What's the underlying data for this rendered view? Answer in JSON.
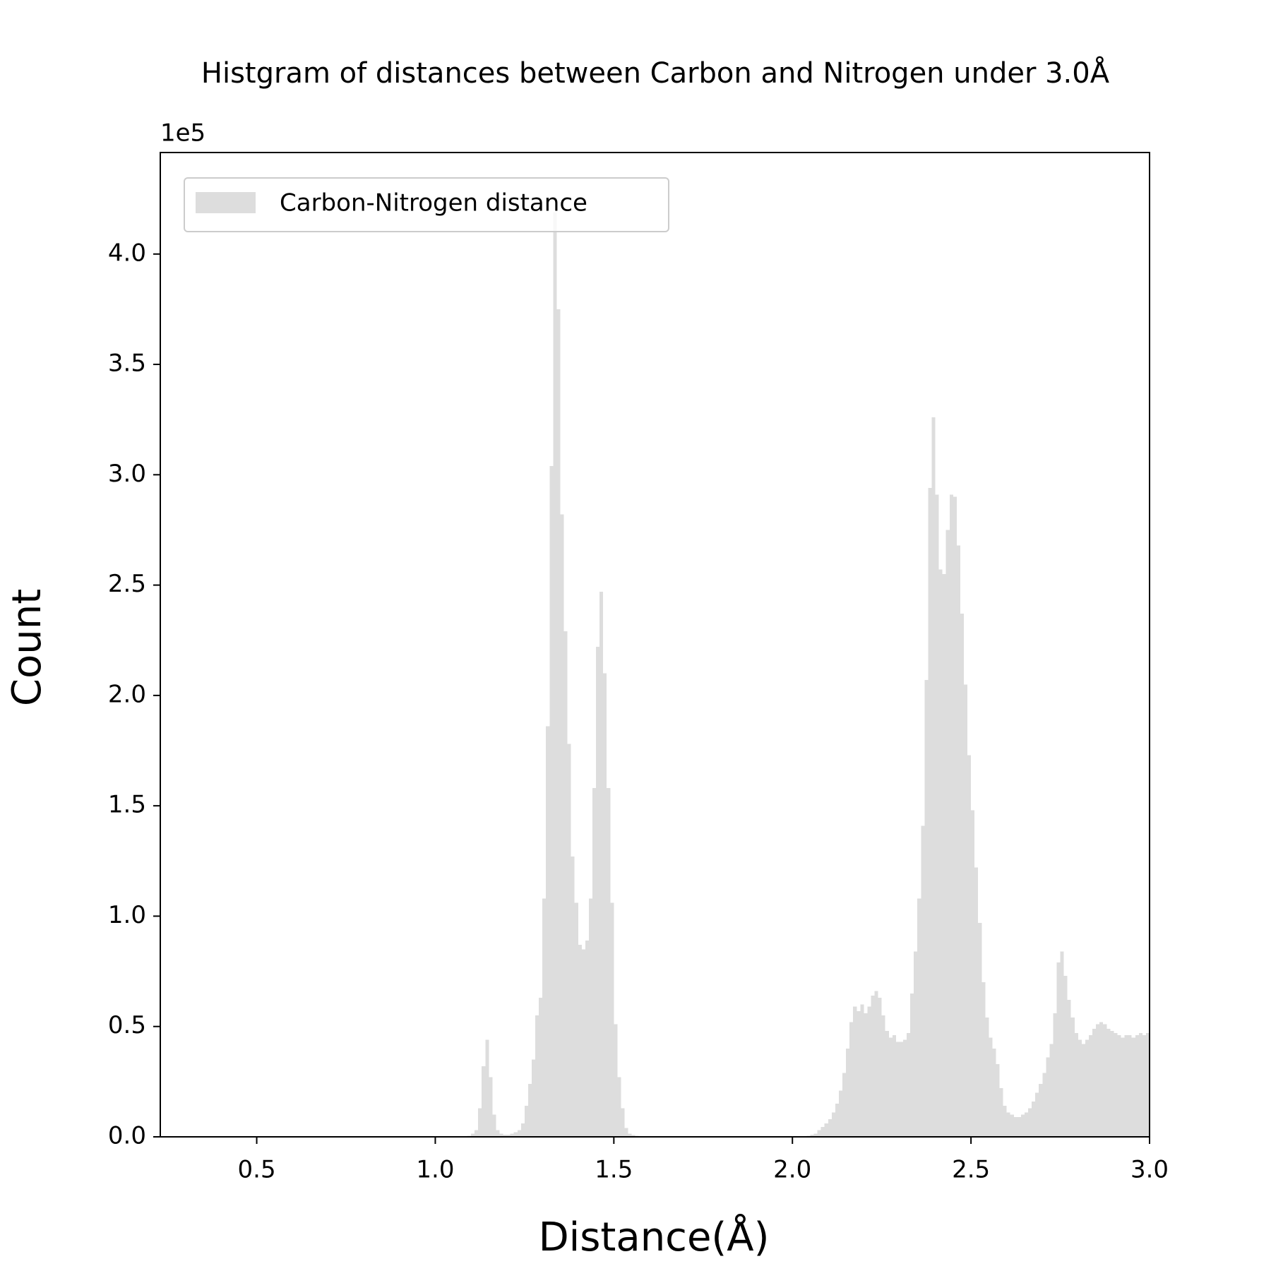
{
  "chart_data": {
    "type": "histogram",
    "title": "Histgram of distances between Carbon and Nitrogen under 3.0Å",
    "x_label": "Distance(Å)",
    "y_label": "Count",
    "y_offset_label": "1e5",
    "legend": "upper left",
    "xlim": [
      0.23,
      3.0
    ],
    "xticks": [
      0.5,
      {
        "value": 1,
        "label": "1.0"
      },
      1.5,
      {
        "value": 2,
        "label": "2.0"
      },
      2.5,
      {
        "value": 3,
        "label": "3.0"
      }
    ],
    "ylim": [
      0,
      446000
    ],
    "yticks": [
      {
        "value": 0,
        "label": "0.0"
      },
      {
        "value": 50000,
        "label": "0.5"
      },
      {
        "value": 100000,
        "label": "1.0"
      },
      {
        "value": 150000,
        "label": "1.5"
      },
      {
        "value": 200000,
        "label": "2.0"
      },
      {
        "value": 250000,
        "label": "2.5"
      },
      {
        "value": 300000,
        "label": "3.0"
      },
      {
        "value": 350000,
        "label": "3.5"
      },
      {
        "value": 400000,
        "label": "4.0"
      }
    ],
    "bins": [
      1.05,
      1.06,
      1.07,
      1.08,
      1.09,
      1.1,
      1.11,
      1.12,
      1.13,
      1.14,
      1.15,
      1.16,
      1.17,
      1.18,
      1.19,
      1.2,
      1.21,
      1.22,
      1.23,
      1.24,
      1.25,
      1.26,
      1.27,
      1.28,
      1.29,
      1.3,
      1.31,
      1.32,
      1.33,
      1.34,
      1.35,
      1.36,
      1.37,
      1.38,
      1.39,
      1.4,
      1.41,
      1.42,
      1.43,
      1.44,
      1.45,
      1.46,
      1.47,
      1.48,
      1.49,
      1.5,
      1.51,
      1.52,
      1.53,
      1.54,
      1.55,
      1.56,
      1.57,
      1.58,
      1.59,
      1.6,
      1.61,
      1.62,
      1.63,
      1.64,
      1.65,
      1.66,
      1.67,
      1.68,
      1.69,
      1.7,
      1.71,
      1.72,
      1.73,
      1.74,
      1.75,
      1.76,
      1.77,
      1.78,
      1.79,
      1.8,
      1.81,
      1.82,
      1.83,
      1.84,
      1.85,
      1.86,
      1.87,
      1.88,
      1.89,
      1.9,
      1.91,
      1.92,
      1.93,
      1.94,
      1.95,
      1.96,
      1.97,
      1.98,
      1.99,
      2.0,
      2.01,
      2.02,
      2.03,
      2.04,
      2.05,
      2.06,
      2.07,
      2.08,
      2.09,
      2.1,
      2.11,
      2.12,
      2.13,
      2.14,
      2.15,
      2.16,
      2.17,
      2.18,
      2.19,
      2.2,
      2.21,
      2.22,
      2.23,
      2.24,
      2.25,
      2.26,
      2.27,
      2.28,
      2.29,
      2.3,
      2.31,
      2.32,
      2.33,
      2.34,
      2.35,
      2.36,
      2.37,
      2.38,
      2.39,
      2.4,
      2.41,
      2.42,
      2.43,
      2.44,
      2.45,
      2.46,
      2.47,
      2.48,
      2.49,
      2.5,
      2.51,
      2.52,
      2.53,
      2.54,
      2.55,
      2.56,
      2.57,
      2.58,
      2.59,
      2.6,
      2.61,
      2.62,
      2.63,
      2.64,
      2.65,
      2.66,
      2.67,
      2.68,
      2.69,
      2.7,
      2.71,
      2.72,
      2.73,
      2.74,
      2.75,
      2.76,
      2.77,
      2.78,
      2.79,
      2.8,
      2.81,
      2.82,
      2.83,
      2.84,
      2.85,
      2.86,
      2.87,
      2.88,
      2.89,
      2.9,
      2.91,
      2.92,
      2.93,
      2.94,
      2.95,
      2.96,
      2.97,
      2.98,
      2.99,
      3.0
    ],
    "series": [
      {
        "name": "Carbon-Nitrogen distance",
        "color": "#dddddd",
        "values": [
          0,
          0,
          0,
          0,
          500,
          1500,
          3000,
          13000,
          32000,
          44000,
          27000,
          10000,
          3000,
          1500,
          1000,
          1000,
          1500,
          2000,
          3000,
          6000,
          14000,
          24000,
          35000,
          55000,
          63000,
          108000,
          186000,
          304000,
          419000,
          375000,
          282000,
          229000,
          178000,
          127000,
          106000,
          87000,
          85000,
          89000,
          108000,
          158000,
          222000,
          247000,
          210000,
          158000,
          106000,
          51000,
          27000,
          13000,
          4000,
          1500,
          800,
          400,
          200,
          100,
          0,
          0,
          0,
          0,
          0,
          0,
          0,
          0,
          0,
          0,
          0,
          0,
          0,
          0,
          0,
          0,
          0,
          0,
          0,
          0,
          0,
          0,
          0,
          0,
          0,
          0,
          0,
          0,
          0,
          0,
          0,
          0,
          0,
          0,
          0,
          0,
          0,
          0,
          0,
          0,
          0,
          0,
          0,
          0,
          0,
          500,
          1000,
          1500,
          3000,
          4500,
          6000,
          8000,
          11000,
          15000,
          21000,
          29000,
          40000,
          52000,
          59000,
          57000,
          60000,
          56000,
          59000,
          64000,
          66000,
          63000,
          55000,
          48000,
          45000,
          46000,
          43000,
          43000,
          44000,
          47000,
          65000,
          84000,
          108000,
          141000,
          207000,
          294000,
          326000,
          291000,
          257000,
          255000,
          275000,
          291000,
          290000,
          268000,
          237000,
          205000,
          173000,
          148000,
          122000,
          97000,
          70000,
          54000,
          45000,
          40000,
          33000,
          22000,
          14000,
          11000,
          10000,
          9000,
          9000,
          10000,
          11000,
          13000,
          16000,
          20000,
          24000,
          29000,
          36000,
          42000,
          56000,
          79000,
          84000,
          73000,
          62000,
          54000,
          47000,
          44000,
          42000,
          44000,
          46000,
          49000,
          51000,
          52000,
          51000,
          49000,
          48000,
          47000,
          46000,
          45000,
          46000,
          46000,
          45000,
          46000,
          47000,
          46000,
          47000
        ]
      }
    ]
  }
}
